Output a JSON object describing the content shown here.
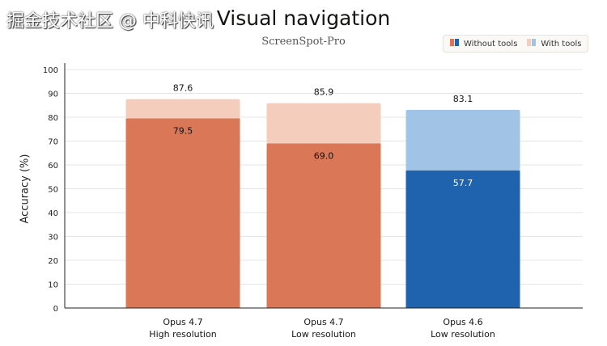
{
  "chart_data": {
    "type": "bar",
    "stacked_overlay": true,
    "title": "Visual navigation",
    "subtitle": "ScreenSpot-Pro",
    "ylabel": "Accuracy (%)",
    "xlabel": "",
    "ylim": [
      0,
      100
    ],
    "yticks": [
      0,
      10,
      20,
      30,
      40,
      50,
      60,
      70,
      80,
      90,
      100
    ],
    "grid": true,
    "legend_position": "top-right",
    "legend": [
      "Without tools",
      "With tools"
    ],
    "categories": [
      {
        "line1": "Opus 4.7",
        "line2": "High resolution"
      },
      {
        "line1": "Opus 4.7",
        "line2": "Low resolution"
      },
      {
        "line1": "Opus 4.6",
        "line2": "Low resolution"
      }
    ],
    "series": [
      {
        "name": "Without tools",
        "values": [
          79.5,
          69.0,
          57.7
        ],
        "labels": [
          "79.5",
          "69.0",
          "57.7"
        ]
      },
      {
        "name": "With tools",
        "values": [
          87.6,
          85.9,
          83.1
        ],
        "labels": [
          "87.6",
          "85.9",
          "83.1"
        ]
      }
    ],
    "colors": {
      "without_tools": [
        "#D97757",
        "#D97757",
        "#1F63AF"
      ],
      "with_tools": [
        "#F5CDBD",
        "#F5CDBD",
        "#A0C3E6"
      ]
    }
  },
  "watermark": "掘金技术社区 @ 中科快讯"
}
